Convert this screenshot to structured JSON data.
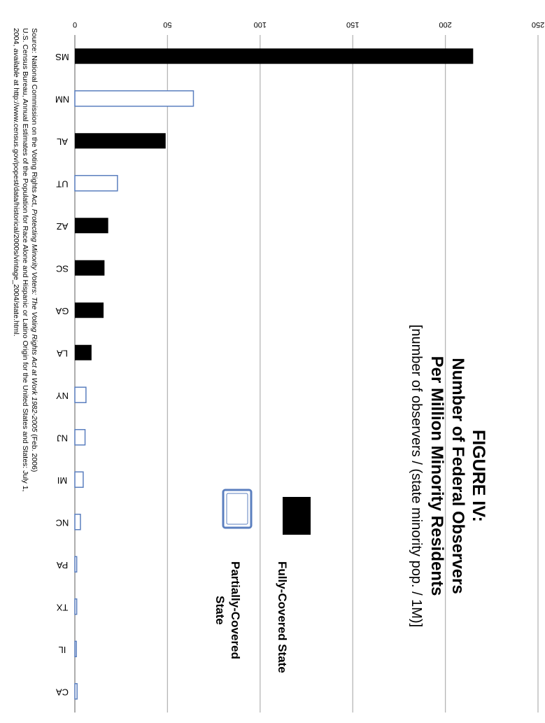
{
  "chart_data": {
    "type": "bar",
    "title": "FIGURE IV:",
    "subtitle_line1": "Number of Federal Observers",
    "subtitle_line2": "Per Million Minority Residents",
    "subtitle_line3": "[number of observers / (state minority pop. / 1M)]",
    "categories": [
      "MS",
      "NM",
      "AL",
      "UT",
      "AZ",
      "SC",
      "GA",
      "LA",
      "NY",
      "NJ",
      "MI",
      "NC",
      "PA",
      "TX",
      "IL",
      "CA"
    ],
    "values": [
      215,
      64,
      49,
      23,
      18,
      16,
      15.5,
      9,
      6,
      5.5,
      4.5,
      3,
      1,
      1,
      0.8,
      1.2
    ],
    "bar_style": [
      "fully",
      "partial",
      "fully",
      "partial",
      "fully",
      "fully",
      "fully",
      "fully",
      "partial",
      "partial",
      "partial",
      "partial",
      "partial",
      "partial",
      "partial",
      "partial"
    ],
    "ylim": [
      0,
      250
    ],
    "yticks": [
      0,
      50,
      100,
      150,
      200,
      250
    ],
    "grid": true,
    "legend": {
      "placement": "right",
      "entries": [
        {
          "label": "Fully-Covered State",
          "style": "fully"
        },
        {
          "label_line1": "Partially-Covered",
          "label_line2": "State",
          "style": "partial"
        }
      ]
    }
  },
  "source": {
    "lead": "Source: National Commission on the Voting Rights Act, ",
    "report_title": "Protecting Minority Voters: The Voting Rights Act at Work 1982-2005",
    "after_title": " (Feb. 2006)",
    "line2": "U.S. Census Bureau, Annual Estimates of the Population for Race Alone and Hispanic or Latino Origin for the United States and States: July 1,",
    "line3_prefix": "2004, ",
    "line3_avail": "available",
    "line3_rest": " at http://www.census.gov/popest/data/historical/2000s/vintage_2004/state.html."
  },
  "colors": {
    "fully_fill": "#000000",
    "partial_stroke": "#5b7fbf",
    "grid": "#b5b5b5",
    "axis": "#777777"
  }
}
